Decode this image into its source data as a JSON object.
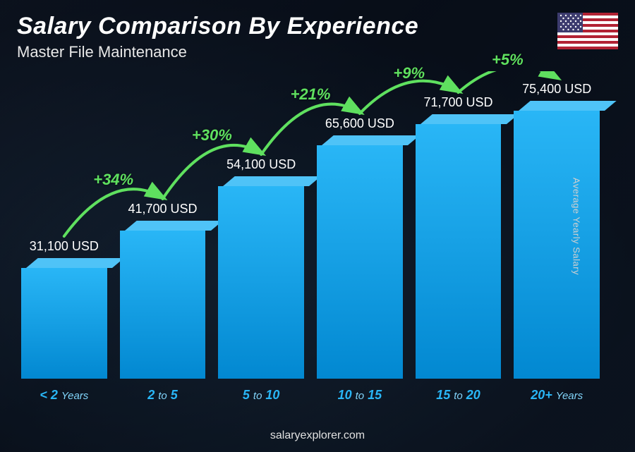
{
  "header": {
    "title": "Salary Comparison By Experience",
    "subtitle": "Master File Maintenance",
    "title_color": "#ffffff",
    "title_fontsize": 34,
    "subtitle_fontsize": 22
  },
  "flag": {
    "country": "United States",
    "stripes": [
      "#b22234",
      "#ffffff",
      "#b22234",
      "#ffffff",
      "#b22234",
      "#ffffff",
      "#b22234",
      "#ffffff",
      "#b22234",
      "#ffffff",
      "#b22234",
      "#ffffff",
      "#b22234"
    ],
    "canton_color": "#3c3b6e",
    "star_color": "#ffffff"
  },
  "chart": {
    "type": "bar-3d",
    "axis_label": "Average Yearly Salary",
    "axis_label_color": "#d0d0d0",
    "currency": "USD",
    "bar_color_top": "#29b6f6",
    "bar_color_bottom": "#0288d1",
    "bar_top_color": "#4fc3f7",
    "max_value": 75400,
    "display_height_max": 380,
    "bars": [
      {
        "category_html": "< 2 <span class='small'>Years</span>",
        "value": 31100,
        "label": "31,100 USD"
      },
      {
        "category_html": "2 <span class='small'>to</span> 5",
        "value": 41700,
        "label": "41,700 USD"
      },
      {
        "category_html": "5 <span class='small'>to</span> 10",
        "value": 54100,
        "label": "54,100 USD"
      },
      {
        "category_html": "10 <span class='small'>to</span> 15",
        "value": 65600,
        "label": "65,600 USD"
      },
      {
        "category_html": "15 <span class='small'>to</span> 20",
        "value": 71700,
        "label": "71,700 USD"
      },
      {
        "category_html": "20+ <span class='small'>Years</span>",
        "value": 75400,
        "label": "75,400 USD"
      }
    ],
    "deltas": [
      {
        "from": 0,
        "to": 1,
        "label": "+34%"
      },
      {
        "from": 1,
        "to": 2,
        "label": "+30%"
      },
      {
        "from": 2,
        "to": 3,
        "label": "+21%"
      },
      {
        "from": 3,
        "to": 4,
        "label": "+9%"
      },
      {
        "from": 4,
        "to": 5,
        "label": "+5%"
      }
    ],
    "delta_color": "#5fe05f",
    "delta_fontsize": 22,
    "category_color": "#29b6f6",
    "category_fontsize": 18
  },
  "footer": {
    "text": "salaryexplorer.com",
    "color": "#e0e0e0"
  },
  "background": {
    "gradient_start": "#1a2332",
    "gradient_end": "#0d1520"
  }
}
